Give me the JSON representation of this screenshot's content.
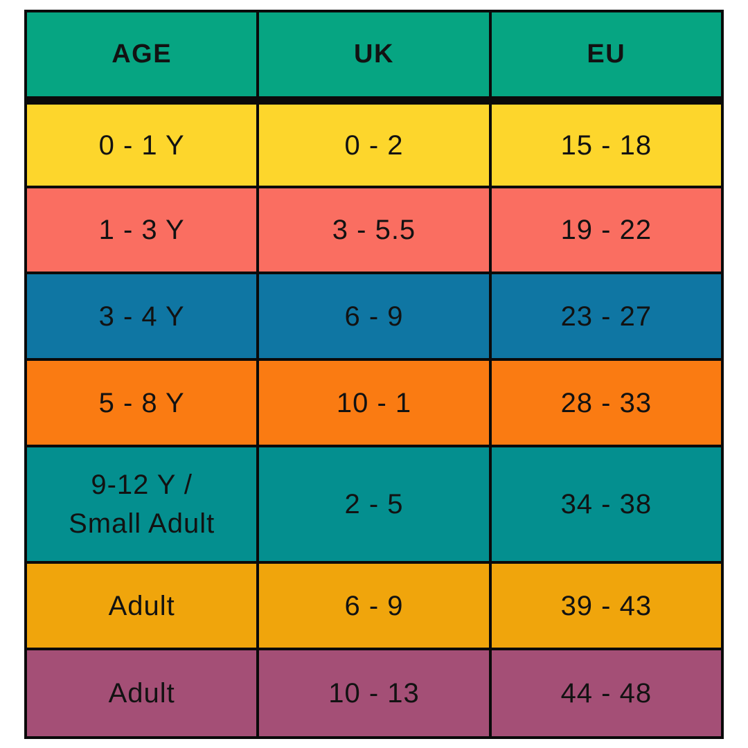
{
  "page": {
    "background_color": "#ffffff",
    "grid_line_color": "#0a0a0a",
    "text_color": "#121212"
  },
  "table": {
    "header": {
      "bg": "#06a582",
      "columns": [
        "AGE",
        "UK",
        "EU"
      ]
    },
    "rows": [
      {
        "bg": "#fdd62c",
        "age": "0 - 1 Y",
        "uk": "0 - 2",
        "eu": "15 - 18"
      },
      {
        "bg": "#fa6e61",
        "age": "1 - 3 Y",
        "uk": "3 - 5.5",
        "eu": "19 - 22"
      },
      {
        "bg": "#0f76a3",
        "age": "3 - 4 Y",
        "uk": "6 - 9",
        "eu": "23 - 27"
      },
      {
        "bg": "#fa7b12",
        "age": "5 - 8 Y",
        "uk": "10 - 1",
        "eu": "28 - 33"
      },
      {
        "bg": "#048f8f",
        "age": "9-12 Y /\nSmall Adult",
        "uk": "2 - 5",
        "eu": "34 - 38"
      },
      {
        "bg": "#f0a50c",
        "age": "Adult",
        "uk": "6 - 9",
        "eu": "39 - 43"
      },
      {
        "bg": "#a44f76",
        "age": "Adult",
        "uk": "10 - 13",
        "eu": "44 - 48"
      }
    ]
  },
  "chart_data": {
    "type": "table",
    "columns": [
      "AGE",
      "UK",
      "EU"
    ],
    "rows": [
      [
        "0 - 1 Y",
        "0 - 2",
        "15 - 18"
      ],
      [
        "1 - 3 Y",
        "3 - 5.5",
        "19 - 22"
      ],
      [
        "3 - 4 Y",
        "6 - 9",
        "23 - 27"
      ],
      [
        "5 - 8 Y",
        "10 - 1",
        "28 - 33"
      ],
      [
        "9-12 Y / Small Adult",
        "2 - 5",
        "34 - 38"
      ],
      [
        "Adult",
        "6 - 9",
        "39 - 43"
      ],
      [
        "Adult",
        "10 - 13",
        "44 - 48"
      ]
    ],
    "legend": "none",
    "grid": "on",
    "row_colors": [
      "#fdd62c",
      "#fa6e61",
      "#0f76a3",
      "#fa7b12",
      "#048f8f",
      "#f0a50c",
      "#a44f76"
    ],
    "header_color": "#06a582"
  }
}
